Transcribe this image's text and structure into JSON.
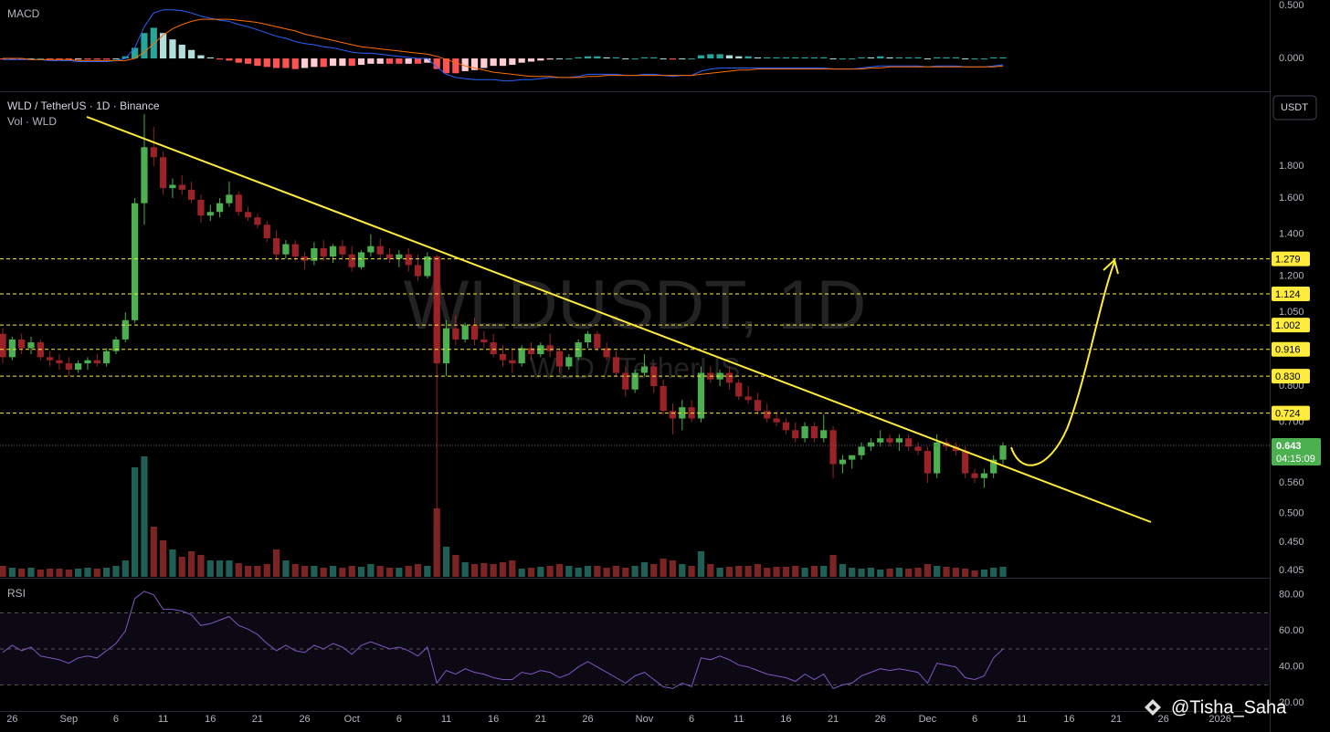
{
  "header": {
    "symbol": "WLD / TetherUS · 1D · Binance",
    "volume_label": "Vol · WLD",
    "currency_button": "USDT",
    "watermark": "WLDUSDT, 1D",
    "watermark_sub": "WLD / TetherUS",
    "author": "@Tisha_Saha"
  },
  "chart_data": {
    "type": "candlestick",
    "log": true,
    "up_color": "#4caf50",
    "down_color": "#9b2328",
    "x": [
      "2025-08-25",
      "2025-08-26",
      "2025-08-27",
      "2025-08-28",
      "2025-08-29",
      "2025-08-30",
      "2025-08-31",
      "2025-09-01",
      "2025-09-02",
      "2025-09-03",
      "2025-09-04",
      "2025-09-05",
      "2025-09-06",
      "2025-09-07",
      "2025-09-08",
      "2025-09-09",
      "2025-09-10",
      "2025-09-11",
      "2025-09-12",
      "2025-09-13",
      "2025-09-14",
      "2025-09-15",
      "2025-09-16",
      "2025-09-17",
      "2025-09-18",
      "2025-09-19",
      "2025-09-20",
      "2025-09-21",
      "2025-09-22",
      "2025-09-23",
      "2025-09-24",
      "2025-09-25",
      "2025-09-26",
      "2025-09-27",
      "2025-09-28",
      "2025-09-29",
      "2025-09-30",
      "2025-10-01",
      "2025-10-02",
      "2025-10-03",
      "2025-10-04",
      "2025-10-05",
      "2025-10-06",
      "2025-10-07",
      "2025-10-08",
      "2025-10-09",
      "2025-10-10",
      "2025-10-11",
      "2025-10-12",
      "2025-10-13",
      "2025-10-14",
      "2025-10-15",
      "2025-10-16",
      "2025-10-17",
      "2025-10-18",
      "2025-10-19",
      "2025-10-20",
      "2025-10-21",
      "2025-10-22",
      "2025-10-23",
      "2025-10-24",
      "2025-10-25",
      "2025-10-26",
      "2025-10-27",
      "2025-10-28",
      "2025-10-29",
      "2025-10-30",
      "2025-10-31",
      "2025-11-01",
      "2025-11-02",
      "2025-11-03",
      "2025-11-04",
      "2025-11-05",
      "2025-11-06",
      "2025-11-07",
      "2025-11-08",
      "2025-11-09",
      "2025-11-10",
      "2025-11-11",
      "2025-11-12",
      "2025-11-13",
      "2025-11-14",
      "2025-11-15",
      "2025-11-16",
      "2025-11-17",
      "2025-11-18",
      "2025-11-19",
      "2025-11-20",
      "2025-11-21",
      "2025-11-22",
      "2025-11-23",
      "2025-11-24",
      "2025-11-25",
      "2025-11-26",
      "2025-11-27",
      "2025-11-28",
      "2025-11-29",
      "2025-11-30",
      "2025-12-01",
      "2025-12-02",
      "2025-12-03",
      "2025-12-04",
      "2025-12-05",
      "2025-12-06",
      "2025-12-07",
      "2025-12-08",
      "2025-12-09"
    ],
    "open": [
      0.97,
      0.89,
      0.95,
      0.92,
      0.94,
      0.89,
      0.88,
      0.87,
      0.85,
      0.87,
      0.88,
      0.87,
      0.91,
      0.95,
      1.02,
      1.57,
      1.93,
      1.86,
      1.66,
      1.68,
      1.65,
      1.59,
      1.5,
      1.52,
      1.57,
      1.62,
      1.52,
      1.49,
      1.45,
      1.38,
      1.3,
      1.35,
      1.29,
      1.27,
      1.33,
      1.29,
      1.34,
      1.3,
      1.24,
      1.31,
      1.34,
      1.3,
      1.28,
      1.3,
      1.25,
      1.2,
      1.29,
      0.87,
      0.99,
      0.95,
      1.0,
      0.95,
      0.94,
      0.9,
      0.88,
      0.87,
      0.92,
      0.9,
      0.93,
      0.91,
      0.86,
      0.89,
      0.94,
      0.97,
      0.92,
      0.89,
      0.84,
      0.79,
      0.84,
      0.86,
      0.8,
      0.73,
      0.71,
      0.74,
      0.71,
      0.84,
      0.82,
      0.84,
      0.81,
      0.77,
      0.76,
      0.73,
      0.71,
      0.7,
      0.68,
      0.66,
      0.69,
      0.66,
      0.68,
      0.6,
      0.61,
      0.62,
      0.64,
      0.65,
      0.66,
      0.65,
      0.66,
      0.64,
      0.63,
      0.58,
      0.65,
      0.64,
      0.63,
      0.58,
      0.57,
      0.58,
      0.61
    ],
    "high": [
      0.99,
      0.96,
      0.97,
      0.96,
      0.95,
      0.91,
      0.9,
      0.89,
      0.88,
      0.89,
      0.9,
      0.92,
      0.96,
      1.05,
      1.6,
      2.18,
      2.08,
      1.9,
      1.72,
      1.74,
      1.7,
      1.62,
      1.56,
      1.6,
      1.7,
      1.64,
      1.55,
      1.51,
      1.47,
      1.42,
      1.37,
      1.37,
      1.31,
      1.36,
      1.37,
      1.35,
      1.37,
      1.34,
      1.32,
      1.4,
      1.38,
      1.33,
      1.32,
      1.33,
      1.3,
      1.31,
      1.3,
      1.02,
      1.04,
      1.01,
      1.03,
      0.98,
      0.97,
      0.93,
      0.92,
      0.93,
      0.94,
      0.94,
      0.97,
      0.92,
      0.9,
      0.95,
      0.98,
      0.98,
      0.94,
      0.91,
      0.86,
      0.85,
      0.9,
      0.87,
      0.82,
      0.75,
      0.76,
      0.76,
      0.86,
      0.86,
      0.85,
      0.86,
      0.82,
      0.8,
      0.78,
      0.75,
      0.73,
      0.71,
      0.7,
      0.7,
      0.7,
      0.72,
      0.69,
      0.62,
      0.62,
      0.65,
      0.66,
      0.68,
      0.67,
      0.67,
      0.67,
      0.65,
      0.64,
      0.67,
      0.66,
      0.65,
      0.64,
      0.59,
      0.59,
      0.62,
      0.65
    ],
    "low": [
      0.87,
      0.88,
      0.9,
      0.9,
      0.88,
      0.86,
      0.85,
      0.83,
      0.84,
      0.85,
      0.86,
      0.86,
      0.9,
      0.94,
      1.01,
      1.45,
      1.8,
      1.62,
      1.6,
      1.62,
      1.57,
      1.46,
      1.47,
      1.49,
      1.55,
      1.5,
      1.47,
      1.43,
      1.36,
      1.27,
      1.28,
      1.27,
      1.23,
      1.25,
      1.27,
      1.26,
      1.28,
      1.22,
      1.23,
      1.29,
      1.28,
      1.26,
      1.24,
      1.22,
      1.18,
      1.19,
      0.48,
      0.83,
      0.93,
      0.94,
      0.93,
      0.92,
      0.89,
      0.86,
      0.84,
      0.86,
      0.88,
      0.89,
      0.89,
      0.84,
      0.85,
      0.88,
      0.92,
      0.91,
      0.88,
      0.83,
      0.77,
      0.78,
      0.83,
      0.78,
      0.72,
      0.67,
      0.68,
      0.7,
      0.7,
      0.81,
      0.8,
      0.79,
      0.76,
      0.75,
      0.72,
      0.7,
      0.69,
      0.67,
      0.65,
      0.65,
      0.65,
      0.65,
      0.57,
      0.58,
      0.59,
      0.61,
      0.63,
      0.64,
      0.64,
      0.63,
      0.63,
      0.62,
      0.56,
      0.57,
      0.63,
      0.62,
      0.57,
      0.56,
      0.55,
      0.57,
      0.6
    ],
    "close": [
      0.89,
      0.95,
      0.92,
      0.94,
      0.89,
      0.88,
      0.87,
      0.85,
      0.87,
      0.88,
      0.87,
      0.91,
      0.95,
      1.02,
      1.57,
      1.93,
      1.86,
      1.66,
      1.68,
      1.65,
      1.59,
      1.5,
      1.52,
      1.57,
      1.62,
      1.52,
      1.49,
      1.45,
      1.38,
      1.3,
      1.35,
      1.29,
      1.27,
      1.33,
      1.29,
      1.34,
      1.3,
      1.24,
      1.31,
      1.34,
      1.3,
      1.28,
      1.3,
      1.25,
      1.2,
      1.29,
      0.87,
      0.99,
      0.95,
      1.0,
      0.95,
      0.94,
      0.9,
      0.88,
      0.87,
      0.92,
      0.9,
      0.93,
      0.91,
      0.86,
      0.89,
      0.94,
      0.97,
      0.92,
      0.89,
      0.84,
      0.79,
      0.84,
      0.86,
      0.8,
      0.73,
      0.71,
      0.74,
      0.71,
      0.84,
      0.82,
      0.84,
      0.81,
      0.77,
      0.76,
      0.73,
      0.71,
      0.7,
      0.68,
      0.66,
      0.69,
      0.66,
      0.68,
      0.6,
      0.61,
      0.62,
      0.64,
      0.65,
      0.66,
      0.65,
      0.66,
      0.64,
      0.63,
      0.58,
      0.65,
      0.64,
      0.63,
      0.58,
      0.57,
      0.58,
      0.61,
      0.643
    ],
    "xlim": [
      "2025-08-25",
      "2026-01-07"
    ],
    "xticks": [
      {
        "value": "2025-08-26",
        "label": "26"
      },
      {
        "value": "2025-09-01",
        "label": "Sep"
      },
      {
        "value": "2025-09-06",
        "label": "6"
      },
      {
        "value": "2025-09-11",
        "label": "11"
      },
      {
        "value": "2025-09-16",
        "label": "16"
      },
      {
        "value": "2025-09-21",
        "label": "21"
      },
      {
        "value": "2025-09-26",
        "label": "26"
      },
      {
        "value": "2025-10-01",
        "label": "Oct"
      },
      {
        "value": "2025-10-06",
        "label": "6"
      },
      {
        "value": "2025-10-11",
        "label": "11"
      },
      {
        "value": "2025-10-16",
        "label": "16"
      },
      {
        "value": "2025-10-21",
        "label": "21"
      },
      {
        "value": "2025-10-26",
        "label": "26"
      },
      {
        "value": "2025-11-01",
        "label": "Nov"
      },
      {
        "value": "2025-11-06",
        "label": "6"
      },
      {
        "value": "2025-11-11",
        "label": "11"
      },
      {
        "value": "2025-11-16",
        "label": "16"
      },
      {
        "value": "2025-11-21",
        "label": "21"
      },
      {
        "value": "2025-11-26",
        "label": "26"
      },
      {
        "value": "2025-12-01",
        "label": "Dec"
      },
      {
        "value": "2025-12-06",
        "label": "6"
      },
      {
        "value": "2025-12-11",
        "label": "11"
      },
      {
        "value": "2025-12-16",
        "label": "16"
      },
      {
        "value": "2025-12-21",
        "label": "21"
      },
      {
        "value": "2025-12-26",
        "label": "26"
      },
      {
        "value": "2026-01-01",
        "label": "2026"
      }
    ],
    "ylim": [
      0.396,
      2.372
    ],
    "yticks": [
      {
        "value": 1.8,
        "label": "1.800"
      },
      {
        "value": 1.6,
        "label": "1.600"
      },
      {
        "value": 1.4,
        "label": "1.400"
      },
      {
        "value": 1.2,
        "label": "1.200"
      },
      {
        "value": 1.05,
        "label": "1.050"
      },
      {
        "value": 0.8,
        "label": "0.800"
      },
      {
        "value": 0.7,
        "label": "0.700"
      },
      {
        "value": 0.56,
        "label": "0.560"
      },
      {
        "value": 0.5,
        "label": "0.500"
      },
      {
        "value": 0.45,
        "label": "0.450"
      },
      {
        "value": 0.405,
        "label": "0.405"
      }
    ],
    "levels": [
      {
        "value": 1.279,
        "label": "1.279"
      },
      {
        "value": 1.124,
        "label": "1.124"
      },
      {
        "value": 1.002,
        "label": "1.002"
      },
      {
        "value": 0.916,
        "label": "0.916"
      },
      {
        "value": 0.83,
        "label": "0.830"
      },
      {
        "value": 0.724,
        "label": "0.724"
      }
    ],
    "level_color": "#ffeb3b",
    "last_price": {
      "value": 0.643,
      "label": "0.643"
    },
    "countdown": "04:15:09",
    "volume": {
      "values": [
        12,
        10,
        9,
        10,
        8,
        9,
        9,
        8,
        9,
        10,
        9,
        10,
        12,
        18,
        120,
        132,
        55,
        40,
        30,
        22,
        28,
        24,
        18,
        18,
        18,
        15,
        12,
        12,
        14,
        30,
        18,
        14,
        12,
        12,
        10,
        12,
        10,
        12,
        11,
        14,
        12,
        10,
        10,
        12,
        14,
        12,
        75,
        33,
        24,
        16,
        14,
        15,
        14,
        16,
        18,
        9,
        10,
        11,
        12,
        14,
        12,
        10,
        12,
        12,
        10,
        12,
        10,
        12,
        16,
        14,
        20,
        18,
        14,
        12,
        28,
        14,
        10,
        11,
        12,
        12,
        14,
        10,
        11,
        11,
        12,
        10,
        12,
        12,
        24,
        14,
        10,
        9,
        10,
        8,
        9,
        10,
        9,
        10,
        14,
        12,
        11,
        10,
        9,
        7,
        8,
        10,
        11
      ],
      "ylim": [
        0,
        140
      ],
      "up_color": "#1f5f56",
      "down_color": "#7a2424"
    },
    "macd": {
      "label": "MACD",
      "line": [
        -0.01,
        -0.01,
        -0.01,
        -0.01,
        -0.01,
        -0.02,
        -0.02,
        -0.02,
        -0.03,
        -0.03,
        -0.03,
        -0.03,
        -0.02,
        0.0,
        0.1,
        0.3,
        0.43,
        0.46,
        0.46,
        0.45,
        0.43,
        0.4,
        0.38,
        0.36,
        0.35,
        0.32,
        0.3,
        0.27,
        0.24,
        0.21,
        0.19,
        0.16,
        0.14,
        0.13,
        0.11,
        0.1,
        0.08,
        0.06,
        0.05,
        0.05,
        0.04,
        0.03,
        0.02,
        0.01,
        0.0,
        0.0,
        -0.08,
        -0.15,
        -0.18,
        -0.19,
        -0.2,
        -0.2,
        -0.2,
        -0.21,
        -0.21,
        -0.2,
        -0.2,
        -0.19,
        -0.18,
        -0.18,
        -0.18,
        -0.17,
        -0.15,
        -0.15,
        -0.15,
        -0.15,
        -0.16,
        -0.16,
        -0.15,
        -0.15,
        -0.16,
        -0.17,
        -0.16,
        -0.16,
        -0.12,
        -0.1,
        -0.09,
        -0.09,
        -0.09,
        -0.09,
        -0.09,
        -0.09,
        -0.09,
        -0.09,
        -0.09,
        -0.09,
        -0.09,
        -0.09,
        -0.1,
        -0.1,
        -0.1,
        -0.09,
        -0.08,
        -0.07,
        -0.07,
        -0.07,
        -0.07,
        -0.07,
        -0.08,
        -0.07,
        -0.07,
        -0.07,
        -0.08,
        -0.08,
        -0.08,
        -0.07,
        -0.06
      ],
      "signal": [
        0.0,
        0.0,
        0.0,
        -0.01,
        -0.01,
        -0.01,
        -0.01,
        -0.01,
        -0.02,
        -0.02,
        -0.02,
        -0.02,
        -0.02,
        -0.02,
        0.0,
        0.06,
        0.14,
        0.22,
        0.28,
        0.32,
        0.35,
        0.37,
        0.37,
        0.37,
        0.37,
        0.36,
        0.35,
        0.34,
        0.32,
        0.3,
        0.28,
        0.26,
        0.23,
        0.21,
        0.19,
        0.17,
        0.15,
        0.13,
        0.11,
        0.1,
        0.09,
        0.08,
        0.07,
        0.06,
        0.05,
        0.04,
        0.02,
        -0.01,
        -0.04,
        -0.07,
        -0.09,
        -0.11,
        -0.13,
        -0.14,
        -0.15,
        -0.16,
        -0.17,
        -0.17,
        -0.17,
        -0.18,
        -0.18,
        -0.18,
        -0.17,
        -0.17,
        -0.16,
        -0.16,
        -0.16,
        -0.16,
        -0.16,
        -0.16,
        -0.16,
        -0.16,
        -0.16,
        -0.16,
        -0.15,
        -0.14,
        -0.13,
        -0.12,
        -0.11,
        -0.11,
        -0.1,
        -0.1,
        -0.1,
        -0.1,
        -0.1,
        -0.1,
        -0.1,
        -0.1,
        -0.1,
        -0.1,
        -0.1,
        -0.1,
        -0.09,
        -0.09,
        -0.08,
        -0.08,
        -0.08,
        -0.08,
        -0.08,
        -0.08,
        -0.08,
        -0.08,
        -0.08,
        -0.08,
        -0.08,
        -0.08,
        -0.07
      ],
      "line_color": "#2962ff",
      "signal_color": "#ff6d00",
      "ylim": [
        -0.31,
        0.552
      ],
      "yticks": [
        {
          "value": 0.5,
          "label": "0.500"
        },
        {
          "value": 0,
          "label": "0.000"
        }
      ]
    },
    "rsi": {
      "label": "RSI",
      "values": [
        48,
        52,
        49,
        51,
        46,
        45,
        44,
        42,
        45,
        46,
        45,
        49,
        53,
        60,
        78,
        82,
        80,
        72,
        72,
        71,
        69,
        63,
        64,
        66,
        68,
        63,
        61,
        58,
        53,
        49,
        52,
        49,
        48,
        52,
        50,
        53,
        51,
        47,
        52,
        54,
        52,
        50,
        51,
        49,
        46,
        51,
        31,
        38,
        36,
        39,
        37,
        36,
        34,
        33,
        33,
        37,
        36,
        38,
        37,
        34,
        36,
        40,
        43,
        40,
        37,
        34,
        31,
        35,
        37,
        33,
        29,
        28,
        31,
        29,
        45,
        44,
        46,
        44,
        41,
        40,
        38,
        36,
        35,
        34,
        32,
        36,
        33,
        36,
        28,
        30,
        31,
        35,
        37,
        39,
        38,
        39,
        38,
        37,
        31,
        42,
        41,
        40,
        34,
        33,
        35,
        45,
        50
      ],
      "color": "#7e57c2",
      "ylim": [
        15,
        88
      ],
      "yticks": [
        {
          "value": 80,
          "label": "80.00"
        },
        {
          "value": 60,
          "label": "60.00"
        },
        {
          "value": 40,
          "label": "40.00"
        },
        {
          "value": 20,
          "label": "20.00"
        }
      ],
      "levels": [
        70,
        50,
        30
      ]
    }
  }
}
